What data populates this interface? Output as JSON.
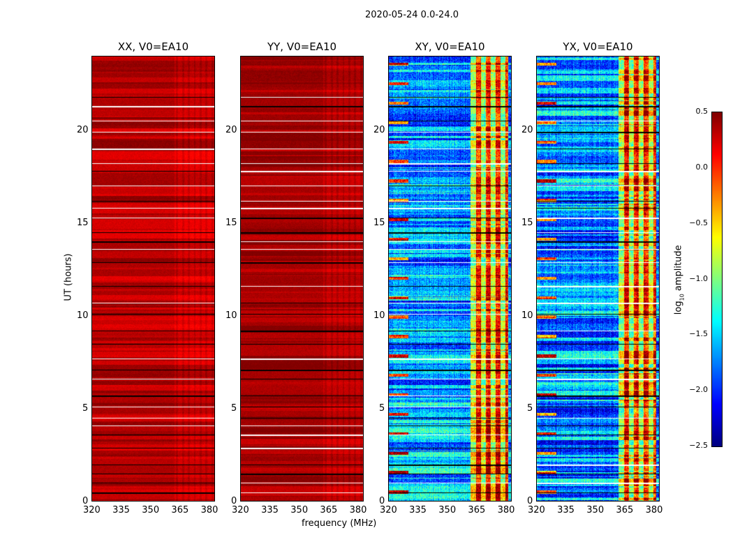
{
  "chart_data": {
    "type": "heatmap",
    "title": "2020-05-24 0.0-24.0",
    "xlabel": "frequency (MHz)",
    "ylabel": "UT (hours)",
    "xlim": [
      320,
      383
    ],
    "ylim": [
      0,
      24
    ],
    "xticks": [
      "320",
      "335",
      "350",
      "365",
      "380"
    ],
    "yticks": [
      "0",
      "5",
      "10",
      "15",
      "20"
    ],
    "colormap": "jet",
    "colorbar": {
      "label_prefix": "log",
      "label_sub": "10",
      "label_suffix": " amplitude",
      "range": [
        -2.5,
        0.5
      ],
      "ticks": [
        "0.5",
        "0.0",
        "−0.5",
        "−1.0",
        "−1.5",
        "−2.0",
        "−2.5"
      ]
    },
    "panels": [
      {
        "title": "XX, V0=EA10",
        "typical_log_amplitude": 0.35,
        "spread": 0.15,
        "rfi_band_mhz": [
          362,
          383
        ]
      },
      {
        "title": "YY, V0=EA10",
        "typical_log_amplitude": 0.4,
        "spread": 0.12,
        "rfi_band_mhz": [
          362,
          383
        ]
      },
      {
        "title": "XY, V0=EA10",
        "typical_log_amplitude": -1.7,
        "spread": 0.5,
        "rfi_band_mhz": [
          362,
          383
        ]
      },
      {
        "title": "YX, V0=EA10",
        "typical_log_amplitude": -1.7,
        "spread": 0.5,
        "rfi_band_mhz": [
          362,
          383
        ]
      }
    ],
    "flagged_ut_hours": [
      0.5,
      1.0,
      1.5,
      2.0,
      2.9,
      3.6,
      4.1,
      4.5,
      5.1,
      5.7,
      6.6,
      7.1,
      7.7,
      8.5,
      9.2,
      10.1,
      10.7,
      11.6,
      12.9,
      13.6,
      14.0,
      14.5,
      15.3,
      15.8,
      16.2,
      17.0,
      17.8,
      18.2,
      19.0,
      19.9,
      20.5,
      21.3,
      21.8
    ]
  }
}
